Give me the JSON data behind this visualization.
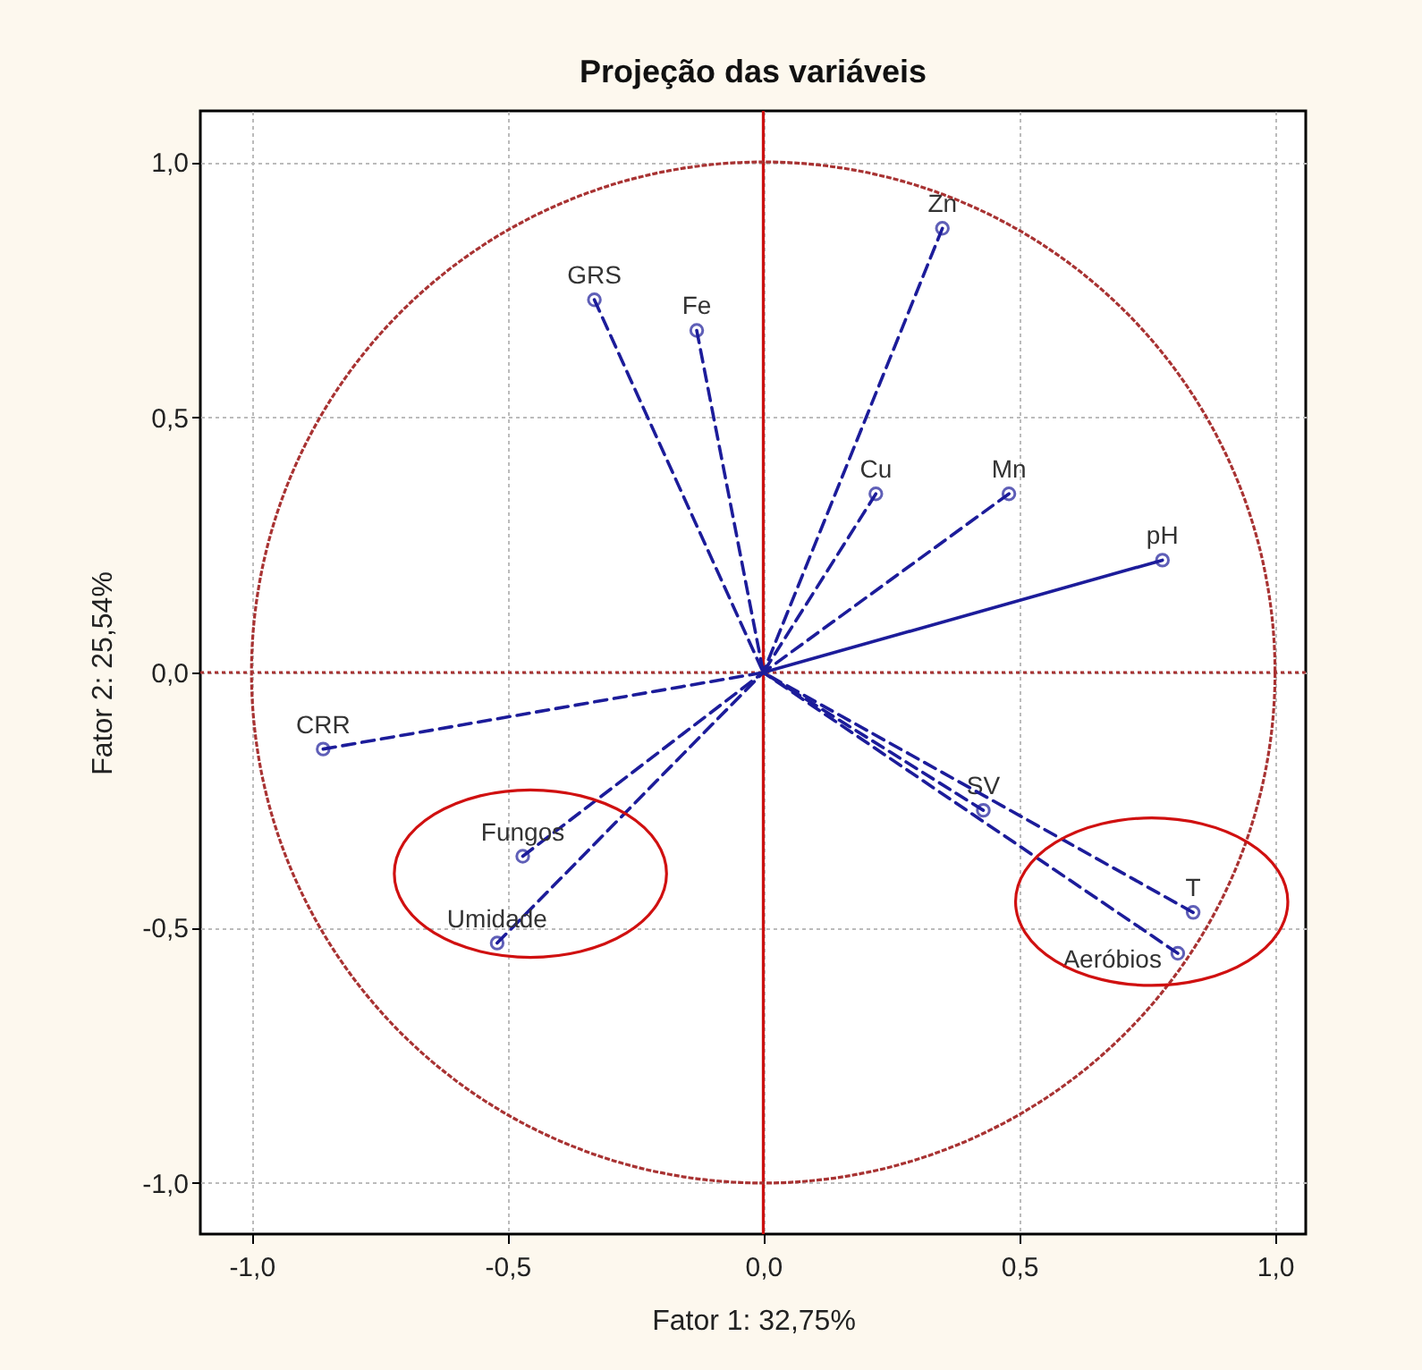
{
  "chart_data": {
    "type": "line",
    "title": "Projeção das variáveis",
    "xlabel": "Fator 1: 32,75%",
    "ylabel": "Fator 2: 25,54%",
    "xlim": [
      -1.1,
      1.06
    ],
    "ylim": [
      -1.1,
      1.1
    ],
    "xticks": [
      {
        "value": -1,
        "label": "-1,0"
      },
      {
        "value": -0.5,
        "label": "-0,5"
      },
      {
        "value": 0,
        "label": "0,0"
      },
      {
        "value": 0.5,
        "label": "0,5"
      },
      {
        "value": 1,
        "label": "1,0"
      }
    ],
    "yticks": [
      {
        "value": -1,
        "label": "-1,0"
      },
      {
        "value": -0.5,
        "label": "-0,5"
      },
      {
        "value": 0,
        "label": "0,0"
      },
      {
        "value": 0.5,
        "label": "0,5"
      },
      {
        "value": 1,
        "label": "1,0"
      }
    ],
    "grid": true,
    "marker": "circle",
    "ref_lines": [
      {
        "axis": "x",
        "value": 0,
        "color": "#cc1111",
        "line_style": "solid"
      },
      {
        "axis": "y",
        "value": 0,
        "color": "#a83232",
        "line_style": "dotted"
      }
    ],
    "series": [
      {
        "name": "GRS",
        "color": "#1c1c9a",
        "line_style": "dashed",
        "x": [
          0,
          -0.33
        ],
        "values": [
          0,
          0.73
        ]
      },
      {
        "name": "Fe",
        "color": "#1c1c9a",
        "line_style": "dashed",
        "x": [
          0,
          -0.13
        ],
        "values": [
          0,
          0.67
        ]
      },
      {
        "name": "Zn",
        "color": "#1c1c9a",
        "line_style": "dashed",
        "x": [
          0,
          0.35
        ],
        "values": [
          0,
          0.87
        ]
      },
      {
        "name": "Cu",
        "color": "#1c1c9a",
        "line_style": "dashed",
        "x": [
          0,
          0.22
        ],
        "values": [
          0,
          0.35
        ]
      },
      {
        "name": "Mn",
        "color": "#1c1c9a",
        "line_style": "dashed",
        "x": [
          0,
          0.48
        ],
        "values": [
          0,
          0.35
        ]
      },
      {
        "name": "pH",
        "color": "#1c1c9a",
        "line_style": "solid",
        "x": [
          0,
          0.78
        ],
        "values": [
          0,
          0.22
        ]
      },
      {
        "name": "CRR",
        "color": "#1c1c9a",
        "line_style": "dashed",
        "x": [
          0,
          -0.86
        ],
        "values": [
          0,
          -0.15
        ]
      },
      {
        "name": "Fungos",
        "color": "#1c1c9a",
        "line_style": "dashed",
        "x": [
          0,
          -0.47
        ],
        "values": [
          0,
          -0.36
        ]
      },
      {
        "name": "Umidade",
        "color": "#1c1c9a",
        "line_style": "dashed",
        "x": [
          0,
          -0.52
        ],
        "values": [
          0,
          -0.53
        ]
      },
      {
        "name": "SV",
        "color": "#1c1c9a",
        "line_style": "dashed",
        "x": [
          0,
          0.43
        ],
        "values": [
          0,
          -0.27
        ]
      },
      {
        "name": "T",
        "color": "#1c1c9a",
        "line_style": "dashed",
        "x": [
          0,
          0.84
        ],
        "values": [
          0,
          -0.47
        ]
      },
      {
        "name": "Aeróbios",
        "color": "#1c1c9a",
        "line_style": "dashed",
        "x": [
          0,
          0.81
        ],
        "values": [
          0,
          -0.55
        ]
      }
    ]
  }
}
